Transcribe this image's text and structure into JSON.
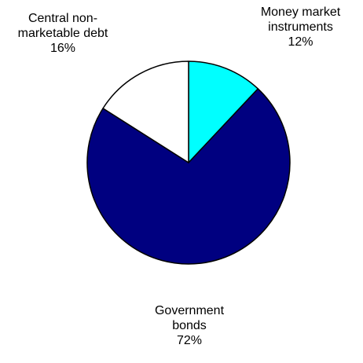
{
  "chart_data": {
    "type": "pie",
    "slices": [
      {
        "label": "Money market instruments",
        "label_lines": [
          "Money market",
          "instruments"
        ],
        "value": 12,
        "display": "12%",
        "color": "#00ffff"
      },
      {
        "label": "Government bonds",
        "label_lines": [
          "Government",
          "bonds"
        ],
        "value": 72,
        "display": "72%",
        "color": "#000080"
      },
      {
        "label": "Central non-marketable debt",
        "label_lines": [
          "Central non-",
          "marketable debt"
        ],
        "value": 16,
        "display": "16%",
        "color": "#ffffff"
      }
    ],
    "start_angle": "12 o'clock",
    "direction": "clockwise",
    "legend": "none",
    "outline_color": "#000000"
  }
}
